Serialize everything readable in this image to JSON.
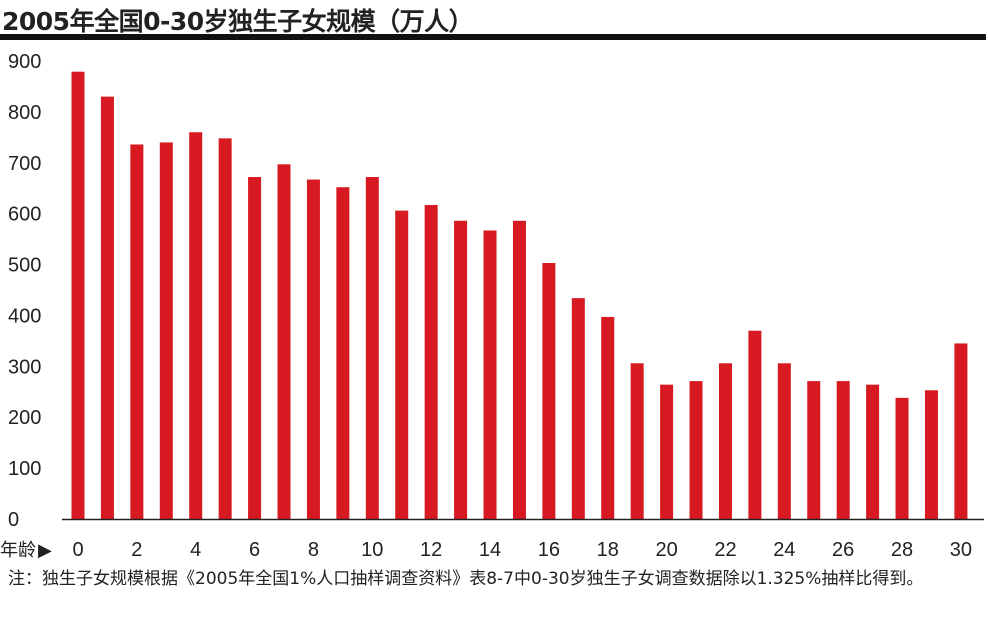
{
  "title": "2005年全国0-30岁独生子女规模（万人）",
  "note": "注：独生子女规模根据《2005年全国1%人口抽样调查资料》表8-7中0-30岁独生子女调查数据除以1.325%抽样比得到。",
  "colors": {
    "bar": "#d71a21",
    "axis": "#222222",
    "title_rule": "#111111"
  },
  "chart_data": {
    "type": "bar",
    "title": "2005年全国0-30岁独生子女规模（万人）",
    "xlabel": "年龄",
    "ylabel": "",
    "categories": [
      0,
      1,
      2,
      3,
      4,
      5,
      6,
      7,
      8,
      9,
      10,
      11,
      12,
      13,
      14,
      15,
      16,
      17,
      18,
      19,
      20,
      21,
      22,
      23,
      24,
      25,
      26,
      27,
      28,
      29,
      30
    ],
    "x_tick_labels": [
      "0",
      "2",
      "4",
      "6",
      "8",
      "10",
      "12",
      "14",
      "16",
      "18",
      "20",
      "22",
      "24",
      "26",
      "28",
      "30"
    ],
    "values": [
      879,
      830,
      736,
      740,
      760,
      748,
      672,
      697,
      667,
      652,
      672,
      606,
      617,
      586,
      567,
      586,
      503,
      434,
      397,
      306,
      264,
      271,
      306,
      370,
      306,
      271,
      271,
      264,
      238,
      253,
      345
    ],
    "ylim": [
      0,
      900
    ],
    "y_ticks": [
      0,
      100,
      200,
      300,
      400,
      500,
      600,
      700,
      800,
      900
    ],
    "grid": false,
    "legend": "none"
  }
}
